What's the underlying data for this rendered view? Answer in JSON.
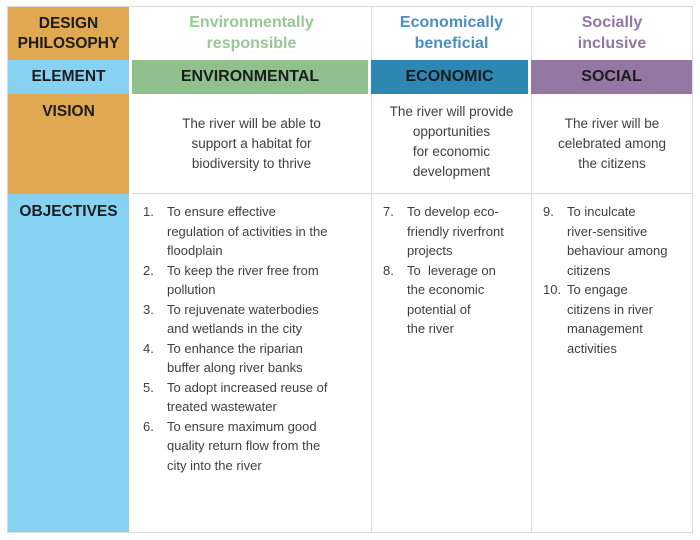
{
  "palette": {
    "orange": "#E0A851",
    "light_blue": "#87D2F2",
    "green": "#8FC08E",
    "green_text": "#97C896",
    "blue": "#2E86B3",
    "blue_text": "#4A8FC2",
    "purple": "#9478A3",
    "purple_text": "#9176A4",
    "grid_line": "#D9D9D9"
  },
  "row_headers": {
    "design_philosophy": "DESIGN\nPHILOSOPHY",
    "element": "ELEMENT",
    "vision": "VISION",
    "objectives": "OBJECTIVES"
  },
  "philosophies": {
    "environmental": "Environmentally\nresponsible",
    "economic": "Economically\nbeneficial",
    "social": "Socially\ninclusive"
  },
  "elements": {
    "environmental": "ENVIRONMENTAL",
    "economic": "ECONOMIC",
    "social": "SOCIAL"
  },
  "visions": {
    "environmental": "The river will be able to\nsupport a habitat for\nbiodiversity to thrive",
    "economic": "The river will provide\nopportunities\nfor economic\ndevelopment",
    "social": "The river will be\ncelebrated among\nthe citizens"
  },
  "objectives": {
    "environmental": [
      {
        "num": "1.",
        "text": "To ensure effective\nregulation of activities in the\nfloodplain"
      },
      {
        "num": "2.",
        "text": "To keep the river free from\npollution"
      },
      {
        "num": "3.",
        "text": "To rejuvenate waterbodies\nand wetlands in the city"
      },
      {
        "num": "4.",
        "text": "To enhance the riparian\nbuffer along river banks"
      },
      {
        "num": "5.",
        "text": "To adopt increased reuse of\ntreated wastewater"
      },
      {
        "num": "6.",
        "text": "To ensure maximum good\nquality return flow from the\ncity into the river"
      }
    ],
    "economic": [
      {
        "num": "7.",
        "text": "To develop eco-\nfriendly riverfront\nprojects"
      },
      {
        "num": "8.",
        "text": "To  leverage on\nthe economic\npotential of\nthe river"
      }
    ],
    "social": [
      {
        "num": "9.",
        "text": "To inculcate\nriver-sensitive\nbehaviour among\ncitizens"
      },
      {
        "num": "10.",
        "text": "To engage\ncitizens in river\nmanagement\nactivities"
      }
    ]
  }
}
